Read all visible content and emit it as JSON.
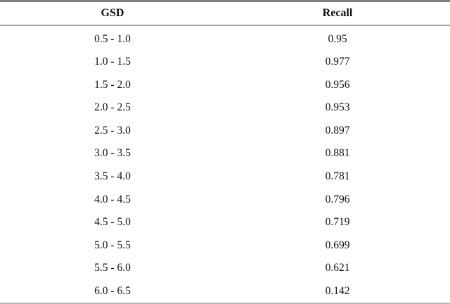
{
  "table": {
    "headers": [
      "GSD",
      "Recall"
    ],
    "rows": [
      {
        "gsd": "0.5 - 1.0",
        "recall": "0.95"
      },
      {
        "gsd": "1.0 - 1.5",
        "recall": "0.977"
      },
      {
        "gsd": "1.5 - 2.0",
        "recall": "0.956"
      },
      {
        "gsd": "2.0 - 2.5",
        "recall": "0.953"
      },
      {
        "gsd": "2.5 - 3.0",
        "recall": "0.897"
      },
      {
        "gsd": "3.0 - 3.5",
        "recall": "0.881"
      },
      {
        "gsd": "3.5 - 4.0",
        "recall": "0.781"
      },
      {
        "gsd": "4.0 - 4.5",
        "recall": "0.796"
      },
      {
        "gsd": "4.5 - 5.0",
        "recall": "0.719"
      },
      {
        "gsd": "5.0 - 5.5",
        "recall": "0.699"
      },
      {
        "gsd": "5.5 - 6.0",
        "recall": "0.621"
      },
      {
        "gsd": "6.0 - 6.5",
        "recall": "0.142"
      }
    ]
  },
  "colors": {
    "top_border": "#7e7e7e",
    "header_underline": "#a2a2a2",
    "bottom_border": "#b8b8b8",
    "text": "#111111",
    "bg": "#ffffff"
  }
}
